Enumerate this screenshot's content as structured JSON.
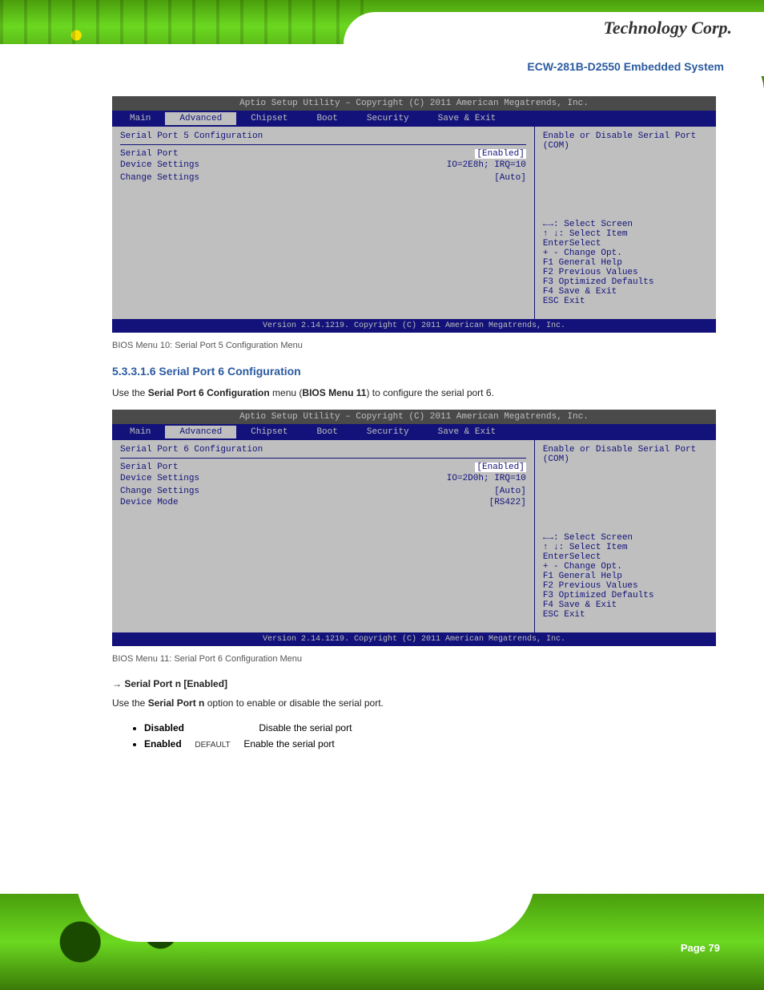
{
  "header": {
    "logo_text": "Technology Corp.",
    "doc_title": "ECW-281B-D2550 Embedded System"
  },
  "footer": {
    "page": "Page 79"
  },
  "bios1": {
    "util": "Aptio Setup Utility – Copyright (C) 2011 American Megatrends, Inc.",
    "menu": [
      "Main",
      "Advanced",
      "Chipset",
      "Boot",
      "Security",
      "Save & Exit"
    ],
    "menu_sel": 1,
    "title": "Serial Port 5 Configuration",
    "rows": [
      {
        "k": "Serial Port",
        "v": "[Enabled]"
      },
      {
        "k": "Device Settings",
        "v": "IO=2E8h; IRQ=10"
      },
      {
        "k": "",
        "v": ""
      },
      {
        "k": "Change Settings",
        "v": "[Auto]"
      }
    ],
    "help": "Enable or Disable Serial Port (COM)",
    "keys": {
      "lr": "←→",
      "ud": "↑ ↓",
      "l1": ": Select Screen",
      "l2": ": Select Item",
      "l3": "EnterSelect",
      "l4": "+ - Change Opt.",
      "l5": "F1  General Help",
      "l6": "F2  Previous Values",
      "l7": "F3  Optimized Defaults",
      "l8": "F4  Save & Exit",
      "l9": "ESC Exit"
    },
    "copy": "Version 2.14.1219. Copyright (C) 2011 American Megatrends, Inc."
  },
  "caption1": "BIOS Menu 10: Serial Port 5 Configuration Menu",
  "sec_heading": "5.3.3.1.6 Serial Port 6 Configuration",
  "para1": "Use the Serial Port 6 Configuration menu (BIOS Menu 11) to configure the serial port 6.",
  "bios2": {
    "util": "Aptio Setup Utility – Copyright (C) 2011 American Megatrends, Inc.",
    "menu": [
      "Main",
      "Advanced",
      "Chipset",
      "Boot",
      "Security",
      "Save & Exit"
    ],
    "menu_sel": 1,
    "title": "Serial Port 6 Configuration",
    "rows": [
      {
        "k": "Serial Port",
        "v": "[Enabled]"
      },
      {
        "k": "Device Settings",
        "v": "IO=2D0h; IRQ=10"
      },
      {
        "k": "",
        "v": ""
      },
      {
        "k": "Change Settings",
        "v": "[Auto]"
      },
      {
        "k": "Device Mode",
        "v": "[RS422]"
      }
    ],
    "help": "Enable or Disable Serial Port (COM)",
    "keys": {
      "lr": "←→",
      "ud": "↑ ↓",
      "l1": ": Select Screen",
      "l2": ": Select Item",
      "l3": "EnterSelect",
      "l4": "+ - Change Opt.",
      "l5": "F1  General Help",
      "l6": "F2  Previous Values",
      "l7": "F3  Optimized Defaults",
      "l8": "F4  Save & Exit",
      "l9": "ESC Exit"
    },
    "copy": "Version 2.14.1219. Copyright (C) 2011 American Megatrends, Inc."
  },
  "caption2": "BIOS Menu 11: Serial Port 6 Configuration Menu",
  "setting": {
    "name": "→  Serial Port n [Enabled]",
    "desc": "Use the Serial Port n option to enable or disable the serial port.",
    "opt1": "Disabled",
    "opt1_desc": "Disable the serial port",
    "opt2": "Enabled",
    "opt2_def": "DEFAULT",
    "opt2_desc": "Enable the serial port"
  }
}
